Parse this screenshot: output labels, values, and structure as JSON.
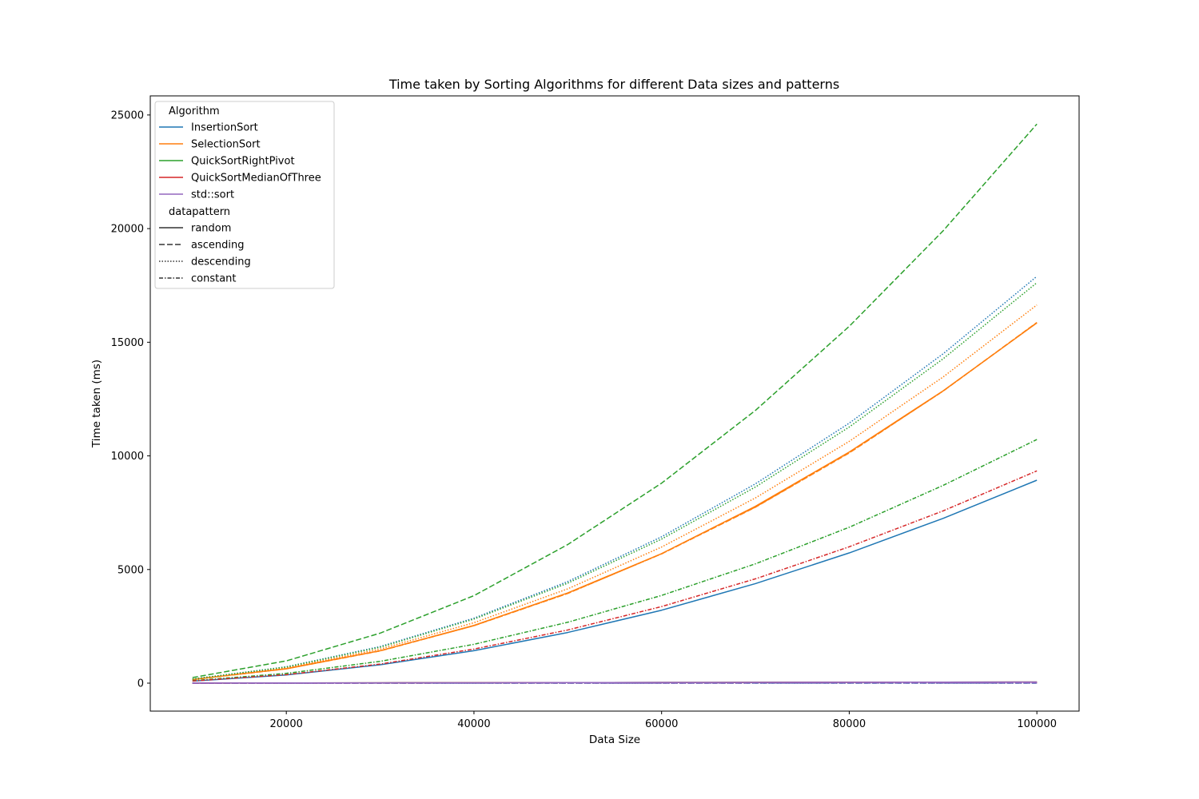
{
  "chart_data": {
    "type": "line",
    "title": "Time taken by Sorting Algorithms for different Data sizes and patterns",
    "xlabel": "Data Size",
    "ylabel": "Time taken (ms)",
    "xlim": [
      5500,
      104500
    ],
    "ylim": [
      -1230,
      25840
    ],
    "xticks": [
      20000,
      40000,
      60000,
      80000,
      100000
    ],
    "yticks": [
      0,
      5000,
      10000,
      15000,
      20000,
      25000
    ],
    "grid": false,
    "legend_position": "upper-left",
    "x": [
      10000,
      20000,
      30000,
      40000,
      50000,
      60000,
      70000,
      80000,
      90000,
      100000
    ],
    "legend": {
      "hue_title": "Algorithm",
      "style_title": "datapattern"
    },
    "algorithms": [
      {
        "name": "InsertionSort",
        "color": "#1f77b4"
      },
      {
        "name": "SelectionSort",
        "color": "#ff7f0e"
      },
      {
        "name": "QuickSortRightPivot",
        "color": "#2ca02c"
      },
      {
        "name": "QuickSortMedianOfThree",
        "color": "#d62728"
      },
      {
        "name": "std::sort",
        "color": "#9467bd"
      }
    ],
    "patterns": [
      {
        "name": "random",
        "dash": ""
      },
      {
        "name": "ascending",
        "dash": "7,3"
      },
      {
        "name": "descending",
        "dash": "1.5,2"
      },
      {
        "name": "constant",
        "dash": "5,2,1.5,2"
      }
    ],
    "series": [
      {
        "algorithm": "InsertionSort",
        "pattern": "random",
        "values": [
          90,
          360,
          810,
          1430,
          2230,
          3210,
          4380,
          5730,
          7250,
          8930
        ]
      },
      {
        "algorithm": "InsertionSort",
        "pattern": "ascending",
        "values": [
          0,
          0,
          0,
          0,
          0,
          0,
          0,
          0,
          0,
          0
        ]
      },
      {
        "algorithm": "InsertionSort",
        "pattern": "descending",
        "values": [
          180,
          720,
          1610,
          2860,
          4470,
          6440,
          8770,
          11440,
          14490,
          17900
        ]
      },
      {
        "algorithm": "InsertionSort",
        "pattern": "constant",
        "values": [
          0,
          0,
          0,
          0,
          0,
          0,
          0,
          0,
          0,
          0
        ]
      },
      {
        "algorithm": "SelectionSort",
        "pattern": "random",
        "values": [
          160,
          640,
          1430,
          2540,
          3970,
          5700,
          7780,
          10170,
          12860,
          15850
        ]
      },
      {
        "algorithm": "SelectionSort",
        "pattern": "ascending",
        "values": [
          160,
          630,
          1420,
          2530,
          3950,
          5690,
          7740,
          10130,
          12850,
          15870
        ]
      },
      {
        "algorithm": "SelectionSort",
        "pattern": "descending",
        "values": [
          170,
          670,
          1500,
          2660,
          4150,
          5990,
          8150,
          10640,
          13470,
          16640
        ]
      },
      {
        "algorithm": "SelectionSort",
        "pattern": "constant",
        "values": [
          160,
          630,
          1420,
          2530,
          3950,
          5690,
          7750,
          10140,
          12850,
          15860
        ]
      },
      {
        "algorithm": "QuickSortRightPivot",
        "pattern": "random",
        "values": [
          5,
          10,
          15,
          20,
          25,
          30,
          35,
          40,
          45,
          50
        ]
      },
      {
        "algorithm": "QuickSortRightPivot",
        "pattern": "ascending",
        "values": [
          245,
          980,
          2200,
          3850,
          6100,
          8800,
          12000,
          15700,
          19900,
          24600
        ]
      },
      {
        "algorithm": "QuickSortRightPivot",
        "pattern": "descending",
        "values": [
          180,
          710,
          1580,
          2820,
          4400,
          6340,
          8630,
          11270,
          14270,
          17620
        ]
      },
      {
        "algorithm": "QuickSortRightPivot",
        "pattern": "constant",
        "values": [
          110,
          430,
          960,
          1710,
          2680,
          3860,
          5250,
          6860,
          8700,
          10720
        ]
      },
      {
        "algorithm": "QuickSortMedianOfThree",
        "pattern": "random",
        "values": [
          5,
          10,
          15,
          20,
          25,
          30,
          35,
          40,
          45,
          50
        ]
      },
      {
        "algorithm": "QuickSortMedianOfThree",
        "pattern": "ascending",
        "values": [
          2,
          4,
          6,
          8,
          10,
          12,
          14,
          16,
          18,
          20
        ]
      },
      {
        "algorithm": "QuickSortMedianOfThree",
        "pattern": "descending",
        "values": [
          3,
          6,
          9,
          12,
          15,
          18,
          21,
          24,
          27,
          30
        ]
      },
      {
        "algorithm": "QuickSortMedianOfThree",
        "pattern": "constant",
        "values": [
          95,
          375,
          840,
          1500,
          2340,
          3370,
          4590,
          6000,
          7580,
          9340
        ]
      },
      {
        "algorithm": "std::sort",
        "pattern": "random",
        "values": [
          5,
          10,
          15,
          20,
          25,
          30,
          35,
          40,
          45,
          50
        ]
      },
      {
        "algorithm": "std::sort",
        "pattern": "ascending",
        "values": [
          1,
          2,
          3,
          4,
          5,
          6,
          7,
          8,
          9,
          10
        ]
      },
      {
        "algorithm": "std::sort",
        "pattern": "descending",
        "values": [
          1,
          2,
          3,
          4,
          5,
          6,
          7,
          8,
          9,
          10
        ]
      },
      {
        "algorithm": "std::sort",
        "pattern": "constant",
        "values": [
          1,
          2,
          3,
          4,
          5,
          6,
          7,
          8,
          9,
          10
        ]
      }
    ]
  }
}
